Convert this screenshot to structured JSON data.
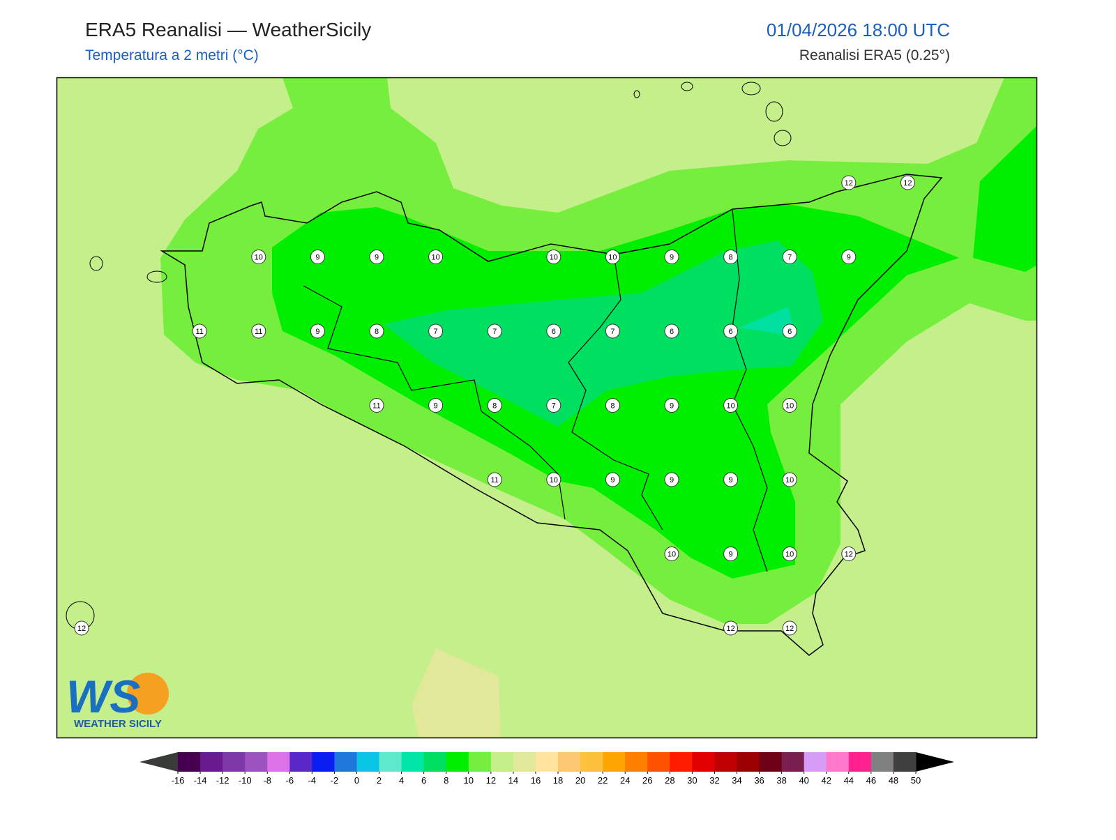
{
  "header": {
    "title": "ERA5 Reanalisi — WeatherSicily",
    "subtitle": "Temperatura a 2 metri (°C)",
    "date": "01/04/2026 18:00 UTC",
    "source": "Reanalisi ERA5 (0.25°)"
  },
  "map": {
    "station_grid": [
      [
        null,
        null,
        null,
        null,
        null,
        null,
        null,
        null,
        null,
        null,
        null,
        null,
        null,
        12,
        12
      ],
      [
        null,
        null,
        null,
        10,
        9,
        9,
        10,
        null,
        10,
        10,
        9,
        8,
        7,
        9,
        null
      ],
      [
        null,
        null,
        11,
        11,
        9,
        8,
        7,
        7,
        6,
        7,
        6,
        6,
        6,
        null,
        null
      ],
      [
        null,
        null,
        null,
        null,
        null,
        11,
        9,
        8,
        7,
        8,
        9,
        10,
        10,
        null,
        null
      ],
      [
        null,
        null,
        null,
        null,
        null,
        null,
        null,
        11,
        10,
        9,
        9,
        9,
        10,
        null,
        null
      ],
      [
        null,
        null,
        null,
        null,
        null,
        null,
        null,
        null,
        null,
        null,
        10,
        9,
        10,
        12,
        null
      ],
      [
        12,
        null,
        null,
        null,
        null,
        null,
        null,
        null,
        null,
        null,
        null,
        12,
        12,
        null,
        null
      ]
    ]
  },
  "logo": {
    "mark": "WS",
    "name": "WEATHER SICILY"
  },
  "legend": {
    "ticks": [
      -16,
      -14,
      -12,
      -10,
      -8,
      -6,
      -4,
      -2,
      0,
      2,
      4,
      6,
      8,
      10,
      12,
      14,
      16,
      18,
      20,
      22,
      24,
      26,
      28,
      30,
      32,
      34,
      36,
      38,
      40,
      42,
      44,
      46,
      48,
      50
    ],
    "colors": [
      "#45004f",
      "#6a1a8f",
      "#7e38a8",
      "#9c52bf",
      "#dc72e8",
      "#5a28c8",
      "#0a1ef2",
      "#1e78dc",
      "#08c6e4",
      "#5ee8cc",
      "#00e6a6",
      "#00e060",
      "#00ee00",
      "#76ee3e",
      "#c4ef8a",
      "#e2e89a",
      "#ffe4a0",
      "#fcc874",
      "#fcc23e",
      "#ffa500",
      "#ff7f00",
      "#ff5200",
      "#ff1c00",
      "#e00000",
      "#c00000",
      "#9c0000",
      "#6e0018",
      "#7a2050",
      "#d69cf6",
      "#ff78cc",
      "#ff2090",
      "#808080",
      "#404040"
    ],
    "under_color": "#3a3a3a",
    "over_color": "#000000"
  }
}
